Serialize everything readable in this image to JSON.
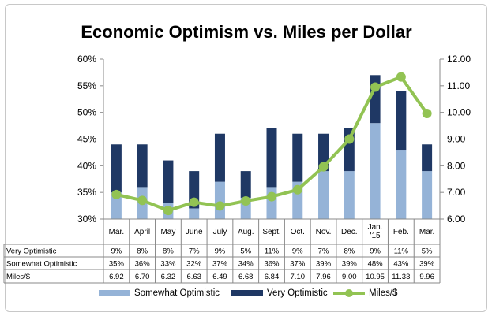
{
  "chart_data": {
    "type": "bar",
    "title": "Economic Optimism vs. Miles per Dollar",
    "categories": [
      "Mar.",
      "April",
      "May",
      "June",
      "July",
      "Aug.",
      "Sept.",
      "Oct.",
      "Nov.",
      "Dec.",
      "Jan. '15",
      "Feb.",
      "Mar."
    ],
    "category_lines": [
      [
        "Mar."
      ],
      [
        "April"
      ],
      [
        "May"
      ],
      [
        "June"
      ],
      [
        "July"
      ],
      [
        "Aug."
      ],
      [
        "Sept."
      ],
      [
        "Oct."
      ],
      [
        "Nov."
      ],
      [
        "Dec."
      ],
      [
        "Jan.",
        "'15"
      ],
      [
        "Feb."
      ],
      [
        "Mar."
      ]
    ],
    "series": [
      {
        "name": "Somewhat Optimistic",
        "kind": "stacked-bar",
        "axis": "left",
        "color": "#95b3d7",
        "values": [
          35,
          36,
          33,
          32,
          37,
          34,
          36,
          37,
          39,
          39,
          48,
          43,
          39
        ],
        "labels": [
          "35%",
          "36%",
          "33%",
          "32%",
          "37%",
          "34%",
          "36%",
          "37%",
          "39%",
          "39%",
          "48%",
          "43%",
          "39%"
        ]
      },
      {
        "name": "Very Optimistic",
        "kind": "stacked-bar",
        "axis": "left",
        "color": "#1f3864",
        "values": [
          9,
          8,
          8,
          7,
          9,
          5,
          11,
          9,
          7,
          8,
          9,
          11,
          5
        ],
        "labels": [
          "9%",
          "8%",
          "8%",
          "7%",
          "9%",
          "5%",
          "11%",
          "9%",
          "7%",
          "8%",
          "9%",
          "11%",
          "5%"
        ]
      },
      {
        "name": "Miles/$",
        "kind": "line",
        "axis": "right",
        "color": "#92c353",
        "values": [
          6.92,
          6.7,
          6.32,
          6.63,
          6.49,
          6.68,
          6.84,
          7.1,
          7.96,
          9.0,
          10.95,
          11.33,
          9.96
        ],
        "labels": [
          "6.92",
          "6.70",
          "6.32",
          "6.63",
          "6.49",
          "6.68",
          "6.84",
          "7.10",
          "7.96",
          "9.00",
          "10.95",
          "11.33",
          "9.96"
        ]
      }
    ],
    "y_left": {
      "min": 30,
      "max": 60,
      "ticks": [
        "30%",
        "35%",
        "40%",
        "45%",
        "50%",
        "55%",
        "60%"
      ]
    },
    "y_right": {
      "min": 6,
      "max": 12,
      "ticks": [
        "6.00",
        "7.00",
        "8.00",
        "9.00",
        "10.00",
        "11.00",
        "12.00"
      ]
    },
    "table_rows": [
      "Very Optimistic",
      "Somewhat Optimistic",
      "Miles/$"
    ],
    "legend": [
      "Somewhat Optimistic",
      "Very Optimistic",
      "Miles/$"
    ],
    "legend_position": "bottom",
    "grid": false
  }
}
